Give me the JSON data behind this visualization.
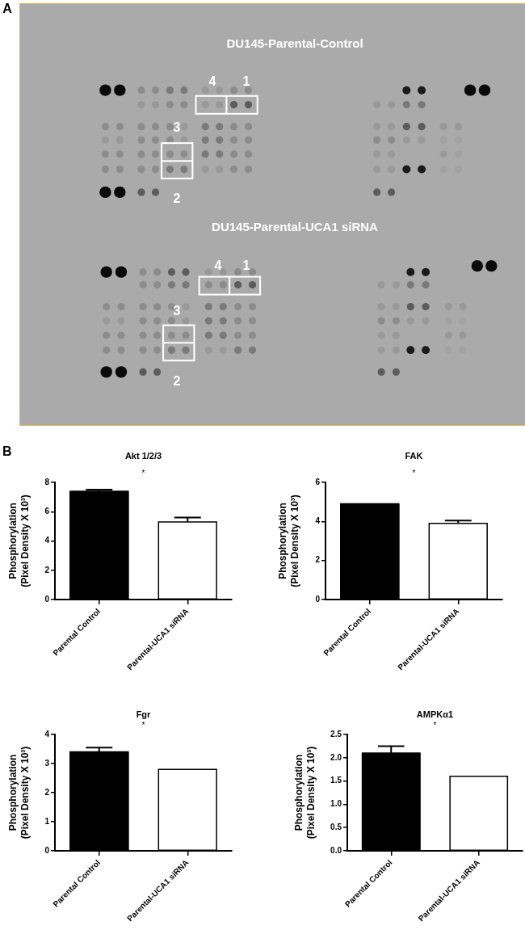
{
  "chart_data": [
    {
      "type": "other",
      "annotations": [
        "A",
        "DU145-Parental-Control",
        "4",
        "1",
        "3",
        "2",
        "DU145-Parental-UCA1 siRNA",
        "4",
        "1",
        "3",
        "2"
      ]
    },
    {
      "type": "bar",
      "title": "Akt 1/2/3",
      "ylabel": "Phosphorylation\n(Pixel Density X 10³)",
      "categories": [
        "Parental Control",
        "Parental-UCA1 siRNA"
      ],
      "values": [
        7.4,
        5.3
      ],
      "colors": [
        "#000000",
        "#ffffff"
      ],
      "errors": [
        [
          7.4,
          7.5
        ],
        [
          5.3,
          5.6
        ]
      ],
      "ylim": [
        0,
        8
      ],
      "yticks": [
        0,
        2,
        4,
        6,
        8
      ],
      "annotations": [
        "B",
        "*"
      ]
    },
    {
      "type": "bar",
      "title": "FAK",
      "ylabel": "Phosphorylation\n(Pixel Density X 10³)",
      "categories": [
        "Parental Control",
        "Parental-UCA1 siRNA"
      ],
      "values": [
        4.9,
        3.9
      ],
      "colors": [
        "#000000",
        "#ffffff"
      ],
      "errors": [
        null,
        [
          3.9,
          4.05
        ]
      ],
      "ylim": [
        0,
        6
      ],
      "yticks": [
        0,
        2,
        4,
        6
      ],
      "annotations": [
        "*"
      ]
    },
    {
      "type": "bar",
      "title": "Fgr",
      "ylabel": "Phosphorylation\n(Pixel Density X 10³)",
      "categories": [
        "Parental Control",
        "Parental-UCA1 siRNA"
      ],
      "values": [
        3.4,
        2.8
      ],
      "colors": [
        "#000000",
        "#ffffff"
      ],
      "errors": [
        [
          3.4,
          3.55
        ],
        null
      ],
      "ylim": [
        0,
        4
      ],
      "yticks": [
        0,
        1,
        2,
        3,
        4
      ],
      "annotations": [
        "*"
      ]
    },
    {
      "type": "bar",
      "title": "AMPKα1",
      "ylabel": "Phosphorylation\n(Pixel Density X 10³)",
      "categories": [
        "Parental Control",
        "Parental-UCA1 siRNA"
      ],
      "values": [
        2.1,
        1.6
      ],
      "colors": [
        "#000000",
        "#ffffff"
      ],
      "errors": [
        [
          2.1,
          2.25
        ],
        null
      ],
      "ylim": [
        0,
        2.5
      ],
      "yticks": [
        {
          "value": 0,
          "label": "0.0"
        },
        0.5,
        {
          "value": 1,
          "label": "1.0"
        },
        1.5,
        {
          "value": 2,
          "label": "2.0"
        },
        2.5
      ],
      "annotations": [
        "*"
      ]
    }
  ]
}
